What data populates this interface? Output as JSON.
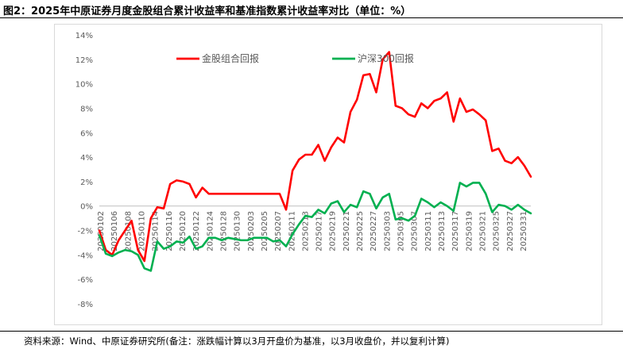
{
  "title": "图2：2025年中原证券月度金股组合累计收益率和基准指数累计收益率对比（单位：%）",
  "source": "资料来源：Wind、中原证券研究所(备注：涨跌幅计算以3月开盘价为基准，以3月收盘价，并以复利计算)",
  "chart_data": {
    "type": "line",
    "title": "",
    "xlabel": "",
    "ylabel": "",
    "ylim": [
      -8,
      14
    ],
    "yticks": [
      14,
      12,
      10,
      8,
      6,
      4,
      2,
      0,
      -2,
      -4,
      -6,
      -8
    ],
    "y_tick_format": "percent",
    "grid": false,
    "legend_position": "top",
    "x_tick_labels": [
      "20250102",
      "20250106",
      "20250108",
      "20250110",
      "20250114",
      "20250116",
      "20250120",
      "20250122",
      "20250124",
      "20250128",
      "20250130",
      "20250203",
      "20250205",
      "20250207",
      "20250211",
      "20250213",
      "20250217",
      "20250219",
      "20250221",
      "20250225",
      "20250227",
      "20250303",
      "20250305",
      "20250307",
      "20250311",
      "20250313",
      "20250317",
      "20250319",
      "20250321",
      "20250325",
      "20250327",
      "20250331"
    ],
    "series": [
      {
        "name": "金股组合回报",
        "color": "#ff0000",
        "values": [
          -2.0,
          -3.6,
          -4.0,
          -2.8,
          -2.0,
          -1.2,
          -3.6,
          -4.5,
          -1.0,
          -0.1,
          -0.2,
          1.8,
          2.1,
          2.0,
          1.8,
          0.7,
          1.5,
          1.0,
          1.0,
          1.0,
          1.0,
          1.0,
          1.0,
          1.0,
          1.0,
          1.0,
          1.0,
          1.0,
          1.0,
          -0.3,
          2.9,
          3.8,
          4.2,
          4.2,
          5.0,
          3.7,
          4.8,
          5.6,
          5.2,
          7.7,
          8.7,
          10.7,
          10.8,
          9.3,
          12.0,
          12.6,
          8.2,
          8.0,
          7.5,
          7.3,
          8.4,
          8.0,
          8.6,
          8.8,
          9.3,
          6.9,
          8.8,
          7.7,
          7.9,
          7.5,
          7.0,
          4.5,
          4.7,
          3.7,
          3.5,
          4.0,
          3.3,
          2.4
        ]
      },
      {
        "name": "沪深300回报",
        "color": "#00b050",
        "values": [
          -2.4,
          -3.9,
          -4.1,
          -3.8,
          -3.6,
          -3.7,
          -4.0,
          -5.1,
          -5.3,
          -2.9,
          -3.5,
          -3.3,
          -2.9,
          -3.0,
          -2.5,
          -3.5,
          -3.3,
          -2.6,
          -2.6,
          -2.8,
          -2.6,
          -2.7,
          -2.8,
          -2.8,
          -2.6,
          -2.6,
          -2.6,
          -2.9,
          -2.8,
          -3.3,
          -2.3,
          -1.5,
          -0.8,
          -0.9,
          -0.3,
          -0.6,
          0.2,
          0.4,
          -0.5,
          0.1,
          -0.1,
          1.2,
          1.0,
          -0.2,
          0.7,
          1.0,
          -1.1,
          -1.0,
          -1.2,
          -0.8,
          0.6,
          0.3,
          -0.1,
          0.3,
          0.0,
          -0.4,
          1.9,
          1.6,
          1.9,
          1.9,
          1.0,
          -0.5,
          0.1,
          0.0,
          -0.3,
          0.1,
          -0.3,
          -0.6
        ]
      }
    ]
  }
}
